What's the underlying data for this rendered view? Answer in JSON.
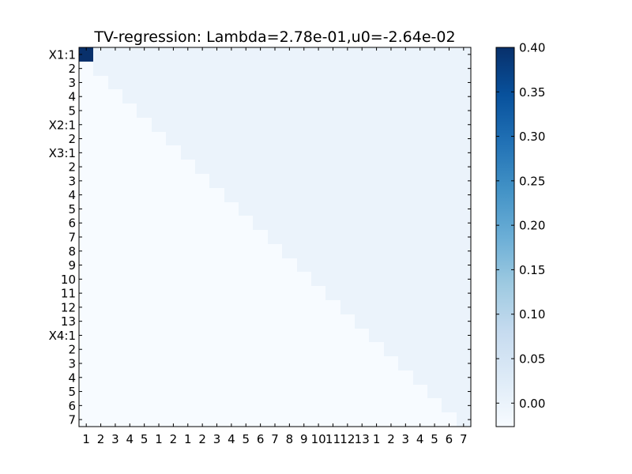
{
  "chart_data": {
    "type": "heatmap",
    "title": "TV-regression: Lambda=2.78e-01,u0=-2.64e-02",
    "n": 27,
    "row_labels": [
      "X1:1",
      "2",
      "3",
      "4",
      "5",
      "X2:1",
      "2",
      "X3:1",
      "2",
      "3",
      "4",
      "5",
      "6",
      "7",
      "8",
      "9",
      "10",
      "11",
      "12",
      "13",
      "X4:1",
      "2",
      "3",
      "4",
      "5",
      "6",
      "7"
    ],
    "col_labels": [
      "1",
      "2",
      "3",
      "4",
      "5",
      "1",
      "2",
      "1",
      "2",
      "3",
      "4",
      "5",
      "6",
      "7",
      "8",
      "9",
      "10",
      "11",
      "12",
      "13",
      "1",
      "2",
      "3",
      "4",
      "5",
      "6",
      "7"
    ],
    "value_rule": "upper triangle (col > row) = 0.0, diagonal = 0.0 except first entry, lower triangle = -0.0264",
    "diagonal_first_value": 0.4,
    "upper_value": 0.0,
    "lower_value": -0.0264,
    "colormap": "Blues",
    "vmin": -0.0264,
    "vmax": 0.4,
    "colorbar_ticks": [
      0.0,
      0.05,
      0.1,
      0.15,
      0.2,
      0.25,
      0.3,
      0.35,
      0.4
    ],
    "colorbar_tick_labels": [
      "0.00",
      "0.05",
      "0.10",
      "0.15",
      "0.20",
      "0.25",
      "0.30",
      "0.35",
      "0.40"
    ],
    "grid": false
  }
}
